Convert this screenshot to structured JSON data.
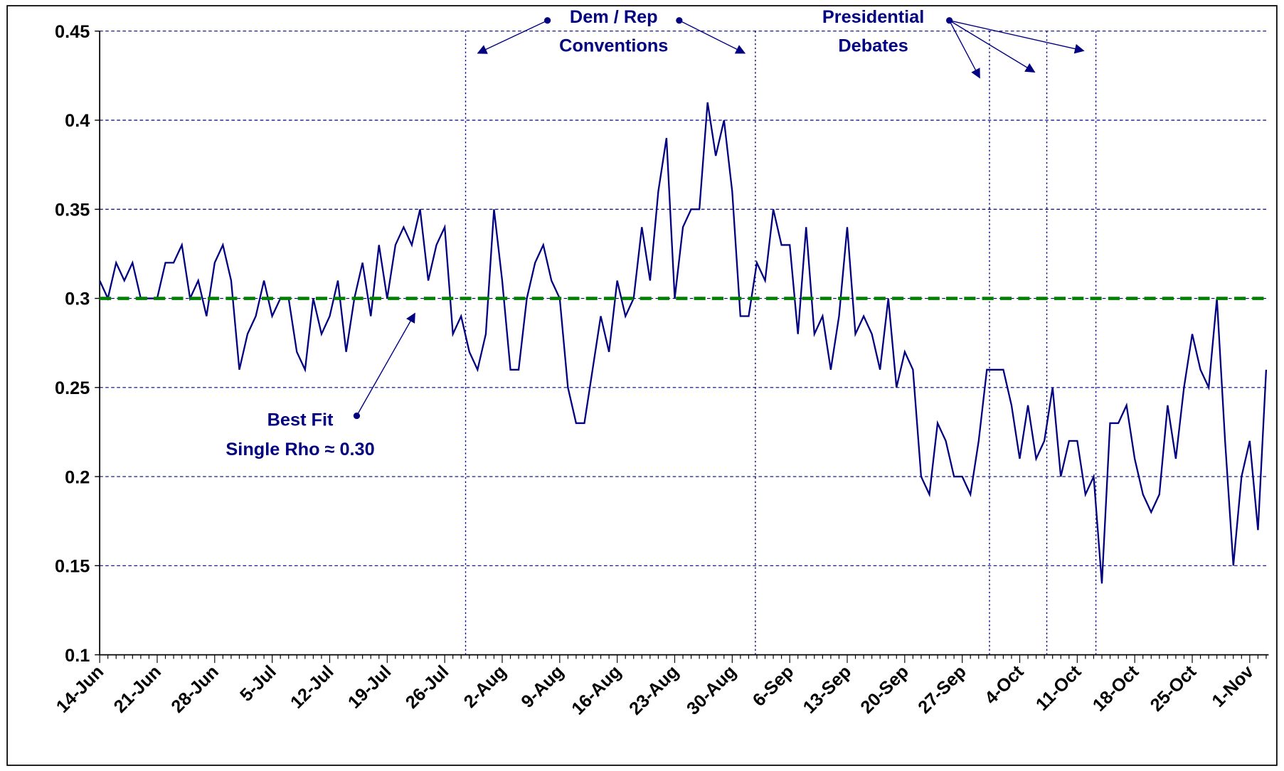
{
  "chart_data": {
    "type": "line",
    "categories": [
      "14-Jun",
      null,
      null,
      null,
      null,
      null,
      null,
      "21-Jun",
      null,
      null,
      null,
      null,
      null,
      null,
      "28-Jun",
      null,
      null,
      null,
      null,
      null,
      null,
      "5-Jul",
      null,
      null,
      null,
      null,
      null,
      null,
      "12-Jul",
      null,
      null,
      null,
      null,
      null,
      null,
      "19-Jul",
      null,
      null,
      null,
      null,
      null,
      null,
      "26-Jul",
      null,
      null,
      null,
      null,
      null,
      null,
      "2-Aug",
      null,
      null,
      null,
      null,
      null,
      null,
      "9-Aug",
      null,
      null,
      null,
      null,
      null,
      null,
      "16-Aug",
      null,
      null,
      null,
      null,
      null,
      null,
      "23-Aug",
      null,
      null,
      null,
      null,
      null,
      null,
      "30-Aug",
      null,
      null,
      null,
      null,
      null,
      null,
      "6-Sep",
      null,
      null,
      null,
      null,
      null,
      null,
      "13-Sep",
      null,
      null,
      null,
      null,
      null,
      null,
      "20-Sep",
      null,
      null,
      null,
      null,
      null,
      null,
      "27-Sep",
      null,
      null,
      null,
      null,
      null,
      null,
      "4-Oct",
      null,
      null,
      null,
      null,
      null,
      null,
      "11-Oct",
      null,
      null,
      null,
      null,
      null,
      null,
      "18-Oct",
      null,
      null,
      null,
      null,
      null,
      null,
      "25-Oct",
      null,
      null,
      null,
      null,
      null,
      null,
      "1-Nov",
      null,
      null
    ],
    "values": [
      0.31,
      0.3,
      0.32,
      0.31,
      0.32,
      0.3,
      0.3,
      0.3,
      0.32,
      0.32,
      0.33,
      0.3,
      0.31,
      0.29,
      0.32,
      0.33,
      0.31,
      0.26,
      0.28,
      0.29,
      0.31,
      0.29,
      0.3,
      0.3,
      0.27,
      0.26,
      0.3,
      0.28,
      0.29,
      0.31,
      0.27,
      0.3,
      0.32,
      0.29,
      0.33,
      0.3,
      0.33,
      0.34,
      0.33,
      0.35,
      0.31,
      0.33,
      0.34,
      0.28,
      0.29,
      0.27,
      0.26,
      0.28,
      0.35,
      0.31,
      0.26,
      0.26,
      0.3,
      0.32,
      0.33,
      0.31,
      0.3,
      0.25,
      0.23,
      0.23,
      0.26,
      0.29,
      0.27,
      0.31,
      0.29,
      0.3,
      0.34,
      0.31,
      0.36,
      0.39,
      0.3,
      0.34,
      0.35,
      0.35,
      0.41,
      0.38,
      0.4,
      0.36,
      0.29,
      0.29,
      0.32,
      0.31,
      0.35,
      0.33,
      0.33,
      0.28,
      0.34,
      0.28,
      0.29,
      0.26,
      0.29,
      0.34,
      0.28,
      0.29,
      0.28,
      0.26,
      0.3,
      0.25,
      0.27,
      0.26,
      0.2,
      0.19,
      0.23,
      0.22,
      0.2,
      0.2,
      0.19,
      0.22,
      0.26,
      0.26,
      0.26,
      0.24,
      0.21,
      0.24,
      0.21,
      0.22,
      0.25,
      0.2,
      0.22,
      0.22,
      0.19,
      0.2,
      0.14,
      0.23,
      0.23,
      0.24,
      0.21,
      0.19,
      0.18,
      0.19,
      0.24,
      0.21,
      0.25,
      0.28,
      0.26,
      0.25,
      0.3,
      0.22,
      0.15,
      0.2,
      0.22,
      0.17,
      0.26
    ],
    "color": "#000080",
    "ylim": [
      0.1,
      0.45
    ],
    "yticks": [
      0.1,
      0.15,
      0.2,
      0.25,
      0.3,
      0.35,
      0.4,
      0.45
    ],
    "grid": true,
    "reference_line": {
      "value": 0.3,
      "color": "#008000"
    },
    "annotations": {
      "conventions": [
        "Dem / Rep",
        "Conventions"
      ],
      "debates": [
        "Presidential",
        "Debates"
      ],
      "best_fit": [
        "Best Fit",
        "Single Rho ≈ 0.30"
      ]
    }
  }
}
